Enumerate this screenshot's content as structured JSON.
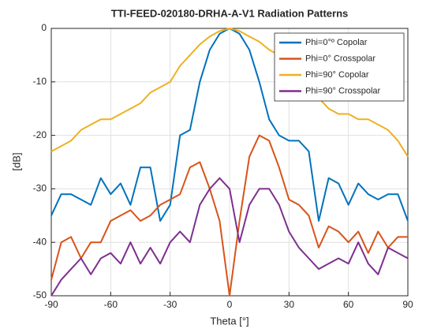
{
  "chart_data": {
    "type": "line",
    "title": "TTI-FEED-020180-DRHA-A-V1 Radiation Patterns",
    "xlabel": "Theta [°]",
    "ylabel": "[dB]",
    "x": [
      -90,
      -85,
      -80,
      -75,
      -70,
      -65,
      -60,
      -55,
      -50,
      -45,
      -40,
      -35,
      -30,
      -25,
      -20,
      -15,
      -10,
      -5,
      0,
      5,
      10,
      15,
      20,
      25,
      30,
      35,
      40,
      45,
      50,
      55,
      60,
      65,
      70,
      75,
      80,
      85,
      90
    ],
    "series": [
      {
        "name": "Phi=0°º Copolar",
        "color": "#0072BD",
        "values": [
          -35,
          -31,
          -31,
          -32,
          -33,
          -28,
          -31,
          -29,
          -33,
          -26,
          -26,
          -36,
          -33,
          -20,
          -19,
          -10,
          -4,
          -1,
          0,
          -1,
          -4,
          -10,
          -17,
          -20,
          -21,
          -21,
          -23,
          -36,
          -28,
          -29,
          -33,
          -29,
          -31,
          -32,
          -31,
          -31,
          -36
        ]
      },
      {
        "name": "Phi=0° Crosspolar",
        "color": "#D95319",
        "values": [
          -47,
          -40,
          -39,
          -43,
          -40,
          -40,
          -36,
          -35,
          -34,
          -36,
          -35,
          -33,
          -32,
          -31,
          -26,
          -25,
          -30,
          -36,
          -50,
          -36,
          -24,
          -20,
          -21,
          -26,
          -32,
          -33,
          -35,
          -41,
          -37,
          -38,
          -40,
          -38,
          -42,
          -38,
          -41,
          -39,
          -39
        ]
      },
      {
        "name": "Phi=90° Copolar",
        "color": "#EDB120",
        "values": [
          -23,
          -22,
          -21,
          -19,
          -18,
          -17,
          -17,
          -16,
          -15,
          -14,
          -12,
          -11,
          -10,
          -7,
          -5,
          -3,
          -1.5,
          -0.5,
          0,
          -0.5,
          -1.5,
          -2.5,
          -4,
          -5,
          -6,
          -8,
          -11,
          -13,
          -15,
          -16,
          -16,
          -17,
          -17,
          -18,
          -19,
          -21,
          -24
        ]
      },
      {
        "name": "Phi=90° Crosspolar",
        "color": "#7E2F8E",
        "values": [
          -50,
          -47,
          -45,
          -43,
          -46,
          -43,
          -42,
          -44,
          -40,
          -44,
          -41,
          -44,
          -40,
          -38,
          -40,
          -33,
          -30,
          -28,
          -30,
          -40,
          -33,
          -30,
          -30,
          -33,
          -38,
          -41,
          -43,
          -45,
          -44,
          -43,
          -44,
          -40,
          -44,
          -46,
          -41,
          -42,
          -43
        ]
      }
    ],
    "xlim": [
      -90,
      90
    ],
    "xticks": [
      -90,
      -60,
      -30,
      0,
      30,
      60,
      90
    ],
    "ylim": [
      -50,
      0
    ],
    "yticks": [
      -50,
      -40,
      -30,
      -20,
      -10,
      0
    ],
    "grid": true,
    "legend": "northeast"
  }
}
